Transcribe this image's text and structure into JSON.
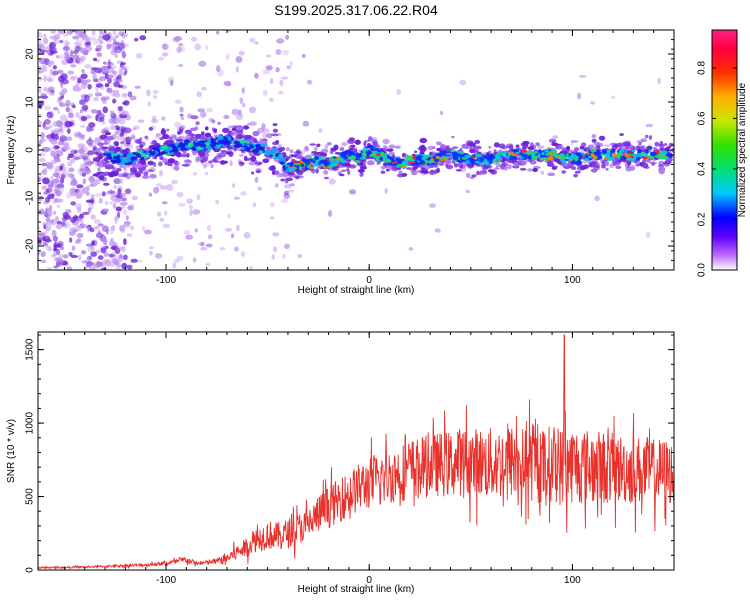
{
  "title": "S199.2025.317.06.22.R04",
  "colors": {
    "snr_line": "#e8312b",
    "spectrogram_main": "#6a1fd8",
    "axes": "#000000"
  },
  "chart_data": [
    {
      "type": "heatmap",
      "name": "spectrogram",
      "xlabel": "Height of straight line (km)",
      "ylabel": "Frequency (Hz)",
      "xlim": [
        -163,
        150
      ],
      "ylim": [
        -25,
        25
      ],
      "xticks": [
        -100,
        0,
        100
      ],
      "xtick_labels": [
        "-100",
        "0",
        "100"
      ],
      "yticks": [
        20,
        10,
        0,
        -10,
        -20
      ],
      "ytick_labels": [
        "20",
        "10",
        "0",
        "-10",
        "-20"
      ],
      "ridge": {
        "x": [
          -130,
          -120,
          -110,
          -100,
          -90,
          -80,
          -70,
          -60,
          -50,
          -45,
          -40,
          -35,
          -30,
          -25,
          -20,
          -15,
          -10,
          -5,
          0,
          5,
          10,
          15,
          20,
          30,
          40,
          50,
          60,
          70,
          80,
          90,
          100,
          110,
          120,
          130,
          140,
          148
        ],
        "freq": [
          -1,
          -2,
          -1,
          0,
          1,
          1,
          2,
          1,
          0,
          -1,
          -4,
          -3,
          -3,
          -2,
          -3,
          -2,
          -1,
          -2,
          0,
          -1,
          -2,
          -3,
          -2,
          -2,
          -1,
          -2,
          -2,
          -1,
          -1,
          -1,
          -2,
          -1,
          -1,
          -1,
          -1,
          -1
        ]
      },
      "colorbar": {
        "label": "Normalized spectral amplitude",
        "range": [
          0.0,
          0.95
        ],
        "ticks": [
          0.0,
          0.2,
          0.4,
          0.6,
          0.8
        ],
        "tick_labels": [
          "0.0",
          "0.2",
          "0.4",
          "0.6",
          "0.8"
        ]
      }
    },
    {
      "type": "line",
      "name": "snr",
      "xlabel": "Height of straight line (km)",
      "ylabel": "SNR (10 * v/v)",
      "xlim": [
        -163,
        150
      ],
      "ylim": [
        0,
        1620
      ],
      "xticks": [
        -100,
        0,
        100
      ],
      "xtick_labels": [
        "-100",
        "0",
        "100"
      ],
      "yticks": [
        0,
        500,
        1000,
        1500
      ],
      "ytick_labels": [
        "0",
        "500",
        "1000",
        "1500"
      ],
      "series": [
        {
          "name": "SNR",
          "x": [
            -163,
            -150,
            -140,
            -130,
            -120,
            -110,
            -100,
            -90,
            -85,
            -80,
            -75,
            -70,
            -65,
            -60,
            -55,
            -50,
            -45,
            -40,
            -35,
            -30,
            -25,
            -20,
            -15,
            -10,
            -5,
            0,
            5,
            10,
            15,
            20,
            25,
            30,
            35,
            40,
            45,
            50,
            55,
            60,
            65,
            70,
            75,
            80,
            85,
            90,
            95,
            100,
            105,
            110,
            115,
            120,
            125,
            130,
            135,
            140,
            145,
            150
          ],
          "base": [
            15,
            18,
            20,
            25,
            30,
            35,
            45,
            70,
            45,
            50,
            60,
            80,
            120,
            160,
            210,
            240,
            230,
            250,
            280,
            310,
            380,
            430,
            470,
            520,
            560,
            590,
            610,
            640,
            660,
            690,
            700,
            710,
            720,
            720,
            740,
            740,
            730,
            720,
            730,
            740,
            720,
            720,
            700,
            730,
            700,
            720,
            710,
            700,
            700,
            690,
            690,
            680,
            680,
            670,
            670,
            660
          ],
          "spread": [
            8,
            8,
            10,
            12,
            15,
            18,
            20,
            40,
            20,
            25,
            40,
            60,
            90,
            110,
            140,
            170,
            160,
            170,
            180,
            190,
            220,
            240,
            250,
            260,
            280,
            300,
            310,
            320,
            330,
            340,
            350,
            360,
            370,
            380,
            390,
            390,
            400,
            420,
            420,
            430,
            430,
            440,
            440,
            450,
            450,
            450,
            440,
            430,
            420,
            410,
            400,
            400,
            390,
            380,
            380,
            380
          ]
        }
      ],
      "peak": {
        "x": 96,
        "y": 1600
      }
    }
  ]
}
